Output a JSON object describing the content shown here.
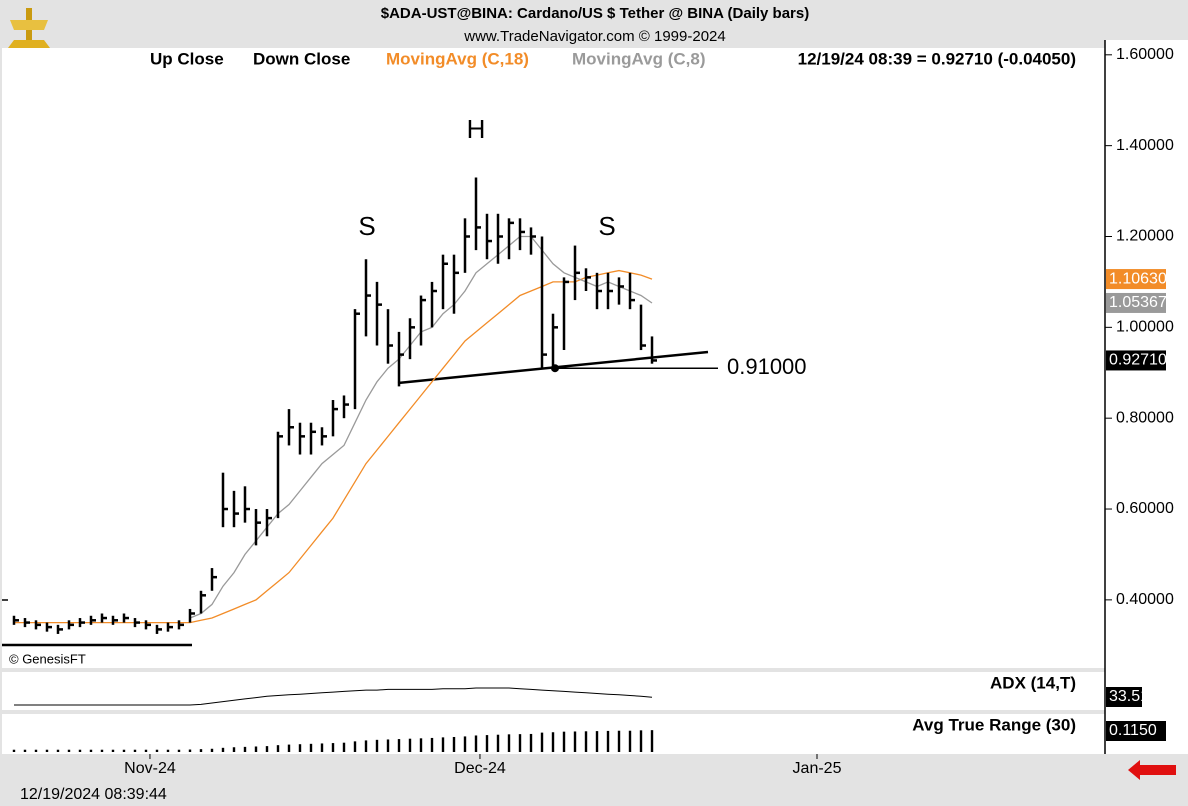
{
  "chart_data": {
    "type": "ohlc",
    "title": "$ADA-UST@BINA:  Cardano/US $ Tether @ BINA  (Daily bars)",
    "subtitle": "www.TradeNavigator.com © 1999-2024",
    "legend": [
      "Up Close",
      "Down Close"
    ],
    "quote": "12/19/24 08:39 = 0.92710 (-0.04050)",
    "color": "#000000",
    "high": [
      0.365,
      0.36,
      0.355,
      0.35,
      0.345,
      0.355,
      0.36,
      0.365,
      0.37,
      0.365,
      0.37,
      0.36,
      0.355,
      0.345,
      0.35,
      0.355,
      0.38,
      0.42,
      0.47,
      0.68,
      0.64,
      0.65,
      0.6,
      0.6,
      0.77,
      0.82,
      0.79,
      0.79,
      0.78,
      0.84,
      0.85,
      1.04,
      1.15,
      1.1,
      1.04,
      0.99,
      1.02,
      1.07,
      1.1,
      1.16,
      1.16,
      1.24,
      1.33,
      1.25,
      1.25,
      1.24,
      1.24,
      1.22,
      1.2,
      1.03,
      1.11,
      1.18,
      1.13,
      1.12,
      1.12,
      1.11,
      1.12,
      1.05,
      0.98
    ],
    "low": [
      0.345,
      0.34,
      0.335,
      0.33,
      0.325,
      0.335,
      0.34,
      0.345,
      0.35,
      0.345,
      0.35,
      0.34,
      0.335,
      0.325,
      0.33,
      0.335,
      0.35,
      0.37,
      0.42,
      0.56,
      0.56,
      0.57,
      0.52,
      0.54,
      0.58,
      0.74,
      0.72,
      0.72,
      0.74,
      0.76,
      0.8,
      0.82,
      0.98,
      0.96,
      0.92,
      0.87,
      0.93,
      0.96,
      1.0,
      1.04,
      1.03,
      1.12,
      1.17,
      1.15,
      1.14,
      1.15,
      1.17,
      1.16,
      0.91,
      0.91,
      0.95,
      1.06,
      1.08,
      1.04,
      1.04,
      1.05,
      1.04,
      0.95,
      0.92
    ],
    "close": [
      0.355,
      0.35,
      0.345,
      0.34,
      0.335,
      0.345,
      0.35,
      0.355,
      0.36,
      0.355,
      0.36,
      0.35,
      0.345,
      0.335,
      0.34,
      0.345,
      0.37,
      0.41,
      0.45,
      0.6,
      0.59,
      0.6,
      0.57,
      0.58,
      0.76,
      0.78,
      0.76,
      0.77,
      0.76,
      0.82,
      0.83,
      1.03,
      1.07,
      1.05,
      0.96,
      0.94,
      1.0,
      1.06,
      1.08,
      1.14,
      1.12,
      1.2,
      1.22,
      1.19,
      1.2,
      1.23,
      1.21,
      1.2,
      0.94,
      1.0,
      1.1,
      1.12,
      1.11,
      1.08,
      1.08,
      1.09,
      1.06,
      0.96,
      0.9271
    ],
    "close_label": "0.92710",
    "overlays": [
      {
        "name": "MovingAvg (C,18)",
        "color": "#f28c28",
        "last_label": "1.10630",
        "values": [
          0.35,
          0.35,
          0.35,
          0.35,
          0.35,
          0.35,
          0.35,
          0.35,
          0.35,
          0.35,
          0.35,
          0.35,
          0.35,
          0.35,
          0.35,
          0.35,
          0.35,
          0.355,
          0.36,
          0.37,
          0.38,
          0.39,
          0.4,
          0.42,
          0.44,
          0.46,
          0.49,
          0.52,
          0.55,
          0.58,
          0.62,
          0.66,
          0.7,
          0.73,
          0.76,
          0.79,
          0.82,
          0.85,
          0.88,
          0.91,
          0.94,
          0.97,
          0.99,
          1.01,
          1.03,
          1.05,
          1.07,
          1.08,
          1.09,
          1.1,
          1.1,
          1.1,
          1.11,
          1.115,
          1.12,
          1.125,
          1.12,
          1.115,
          1.1063
        ]
      },
      {
        "name": "MovingAvg (C,8)",
        "color": "#9a9a9a",
        "last_label": "1.05367",
        "values": [
          null,
          null,
          null,
          null,
          null,
          null,
          null,
          null,
          null,
          null,
          null,
          null,
          null,
          null,
          null,
          null,
          0.36,
          0.37,
          0.39,
          0.43,
          0.46,
          0.5,
          0.53,
          0.56,
          0.59,
          0.61,
          0.64,
          0.67,
          0.7,
          0.72,
          0.74,
          0.79,
          0.84,
          0.88,
          0.91,
          0.93,
          0.96,
          0.99,
          1.0,
          1.03,
          1.05,
          1.08,
          1.12,
          1.14,
          1.16,
          1.18,
          1.2,
          1.2,
          1.17,
          1.14,
          1.12,
          1.11,
          1.1,
          1.09,
          1.1,
          1.09,
          1.08,
          1.07,
          1.05367
        ]
      }
    ],
    "level": {
      "value": 0.91,
      "label": "0.91000"
    },
    "annotations": [
      "S",
      "H",
      "S"
    ],
    "xlim": [
      -1.09,
      99.18
    ],
    "xticks": [
      {
        "value": 12.36,
        "label": "Nov-24"
      },
      {
        "value": 42.36,
        "label": "Dec-24"
      },
      {
        "value": 73,
        "label": "Jan-25"
      }
    ],
    "ylim": [
      0.25,
      1.615
    ],
    "yticks": [
      {
        "value": 0.4,
        "label": "0.40000"
      },
      {
        "value": 0.6,
        "label": "0.60000"
      },
      {
        "value": 0.8,
        "label": "0.80000"
      },
      {
        "value": 1.0,
        "label": "1.00000"
      },
      {
        "value": 1.2,
        "label": "1.20000"
      },
      {
        "value": 1.4,
        "label": "1.40000"
      },
      {
        "value": 1.6,
        "label": "1.60000"
      }
    ],
    "copyright": "© GenesisFT",
    "timestamp": "12/19/2024 08:39:44",
    "indicators": [
      {
        "name": "ADX (14,T)",
        "type": "line",
        "values": [
          22,
          22,
          22,
          22,
          22,
          22,
          22,
          22,
          22,
          22,
          22,
          22,
          22,
          22,
          22,
          22,
          22,
          23,
          25,
          27,
          29,
          31,
          33,
          35,
          36,
          37,
          38,
          39,
          40,
          41,
          42,
          43,
          44,
          44,
          45,
          45,
          45,
          45,
          45,
          46,
          46,
          46,
          47,
          47,
          47,
          47,
          46,
          45,
          44,
          43,
          42,
          41,
          40,
          39,
          38,
          37,
          36,
          35,
          33.51
        ]
      },
      {
        "name": "Avg True Range (30)",
        "type": "bar",
        "last_label": "0.1150",
        "values": [
          0.012,
          0.012,
          0.012,
          0.012,
          0.012,
          0.012,
          0.012,
          0.012,
          0.012,
          0.012,
          0.012,
          0.012,
          0.012,
          0.012,
          0.012,
          0.012,
          0.013,
          0.015,
          0.017,
          0.022,
          0.025,
          0.027,
          0.029,
          0.031,
          0.036,
          0.039,
          0.041,
          0.043,
          0.045,
          0.047,
          0.049,
          0.056,
          0.061,
          0.064,
          0.066,
          0.068,
          0.07,
          0.072,
          0.074,
          0.077,
          0.079,
          0.082,
          0.087,
          0.089,
          0.091,
          0.093,
          0.094,
          0.095,
          0.102,
          0.104,
          0.107,
          0.108,
          0.109,
          0.11,
          0.111,
          0.112,
          0.112,
          0.114,
          0.115
        ]
      }
    ]
  }
}
